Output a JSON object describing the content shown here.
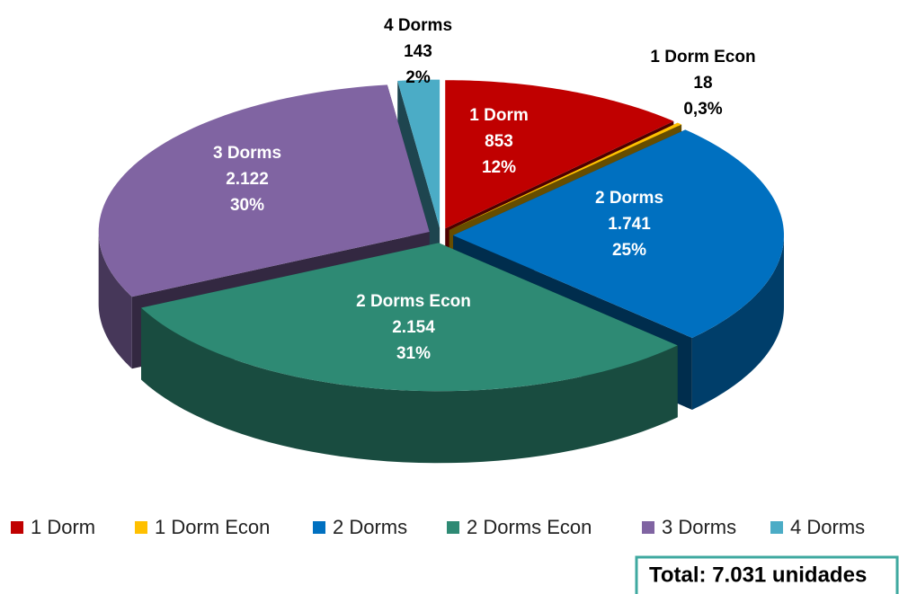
{
  "chart_data": {
    "type": "pie3d",
    "categories": [
      "1 Dorm",
      "1 Dorm Econ",
      "2 Dorms",
      "2 Dorms Econ",
      "3 Dorms",
      "4 Dorms"
    ],
    "values": [
      853,
      18,
      1741,
      2154,
      2122,
      143
    ],
    "value_labels": [
      "853",
      "18",
      "1.741",
      "2.154",
      "2.122",
      "143"
    ],
    "percent_labels": [
      "12%",
      "0,3%",
      "25%",
      "31%",
      "30%",
      "2%"
    ],
    "colors": [
      "#c00000",
      "#ffc000",
      "#0070c0",
      "#2e8a74",
      "#8064a2",
      "#4bacc6"
    ],
    "legend": "bottom",
    "annotation": "Total: 7.031 unidades"
  }
}
